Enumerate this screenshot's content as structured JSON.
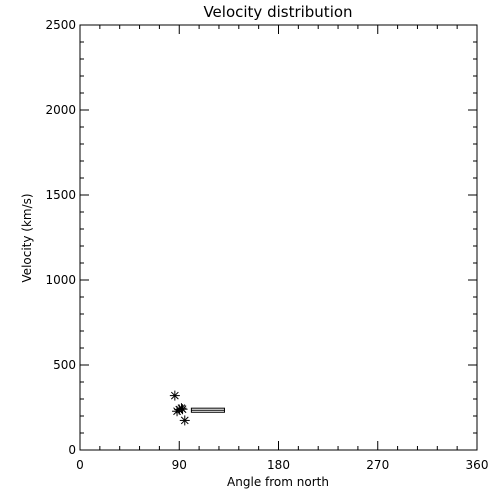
{
  "chart_data": {
    "type": "scatter",
    "title": "Velocity distribution",
    "xlabel": "Angle from north",
    "ylabel": "Velocity (km/s)",
    "xlim": [
      0,
      360
    ],
    "ylim": [
      0,
      2500
    ],
    "xticks": [
      0,
      90,
      180,
      270,
      360
    ],
    "yticks": [
      0,
      500,
      1000,
      1500,
      2000,
      2500
    ],
    "grid": false,
    "points": [
      {
        "x": 86,
        "y": 320
      },
      {
        "x": 88,
        "y": 228
      },
      {
        "x": 90,
        "y": 238
      },
      {
        "x": 92,
        "y": 246
      },
      {
        "x": 93,
        "y": 240
      },
      {
        "x": 95,
        "y": 174
      }
    ],
    "box": {
      "x0": 101,
      "x1": 131,
      "y0": 222,
      "y1": 246
    }
  }
}
